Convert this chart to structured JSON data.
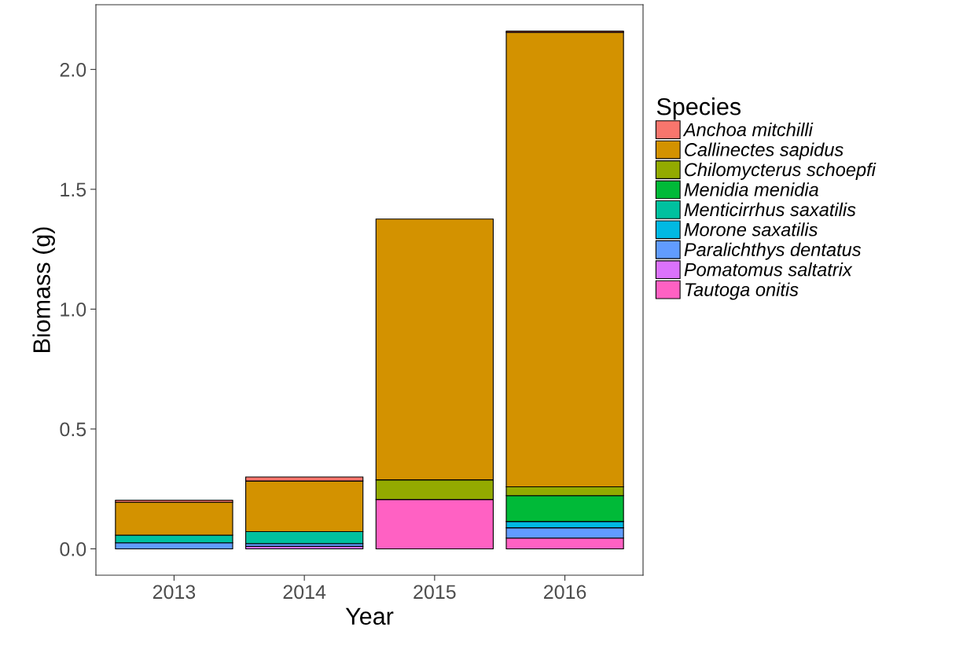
{
  "chart_data": {
    "type": "bar",
    "stacked": true,
    "xlabel": "Year",
    "ylabel": "Biomass (g)",
    "legend_title": "Species",
    "legend": "right",
    "grid": false,
    "categories": [
      "2013",
      "2014",
      "2015",
      "2016"
    ],
    "ylim": [
      -0.11,
      2.27
    ],
    "yticks": [
      {
        "value": 0,
        "label": "0.0"
      },
      {
        "value": 0.5,
        "label": "0.5"
      },
      {
        "value": 1,
        "label": "1.0"
      },
      {
        "value": 1.5,
        "label": "1.5"
      },
      {
        "value": 2,
        "label": "2.0"
      }
    ],
    "series": [
      {
        "name": "Tautoga onitis",
        "color": "#ff61c3",
        "values": [
          null,
          null,
          0.206,
          0.045
        ]
      },
      {
        "name": "Pomatomus saltatrix",
        "color": "#db72fb",
        "values": [
          null,
          0.01,
          null,
          null
        ]
      },
      {
        "name": "Paralichthys dentatus",
        "color": "#619cff",
        "values": [
          0.025,
          0.012,
          null,
          0.043
        ]
      },
      {
        "name": "Morone saxatilis",
        "color": "#00b9e3",
        "values": [
          null,
          null,
          null,
          0.026
        ]
      },
      {
        "name": "Menticirrhus saxatilis",
        "color": "#00c19f",
        "values": [
          0.032,
          0.05,
          null,
          null
        ]
      },
      {
        "name": "Menidia menidia",
        "color": "#00ba38",
        "values": [
          null,
          null,
          null,
          0.108
        ]
      },
      {
        "name": "Chilomycterus schoepfi",
        "color": "#93aa00",
        "values": [
          null,
          null,
          0.082,
          0.037
        ]
      },
      {
        "name": "Callinectes sapidus",
        "color": "#d39200",
        "values": [
          0.138,
          0.211,
          1.088,
          1.896
        ]
      },
      {
        "name": "Anchoa mitchilli",
        "color": "#f8766d",
        "values": [
          0.008,
          0.017,
          null,
          0.005
        ]
      }
    ]
  }
}
